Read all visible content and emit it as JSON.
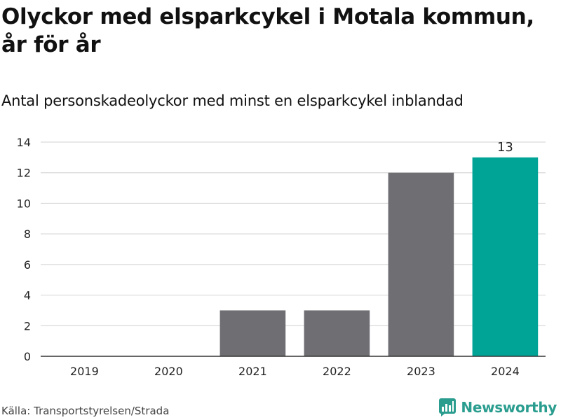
{
  "header": {
    "title": "Olyckor med elsparkcykel i Motala kommun, år för år",
    "subtitle": "Antal personskadeolyckor med minst en elsparkcykel inblandad"
  },
  "footer": {
    "source": "Källa: Transportstyrelsen/Strada",
    "brand": "Newsworthy"
  },
  "colors": {
    "bar_default": "#6e6e73",
    "bar_highlight": "#00a497",
    "gridline": "#d9d9d9",
    "axis": "#333333",
    "brand": "#2a9d8f"
  },
  "icons": {
    "brand_logo": "newsworthy-logo-icon"
  },
  "chart_data": {
    "type": "bar",
    "categories": [
      "2019",
      "2020",
      "2021",
      "2022",
      "2023",
      "2024"
    ],
    "values": [
      0,
      0,
      3,
      3,
      12,
      13
    ],
    "title": "Olyckor med elsparkcykel i Motala kommun, år för år",
    "subtitle": "Antal personskadeolyckor med minst en elsparkcykel inblandad",
    "xlabel": "",
    "ylabel": "",
    "ylim": [
      0,
      14
    ],
    "yticks": [
      0,
      2,
      4,
      6,
      8,
      10,
      12,
      14
    ],
    "highlight_category": "2024",
    "data_labels": [
      {
        "category": "2024",
        "text": "13"
      }
    ],
    "grid": true,
    "legend": "none"
  }
}
